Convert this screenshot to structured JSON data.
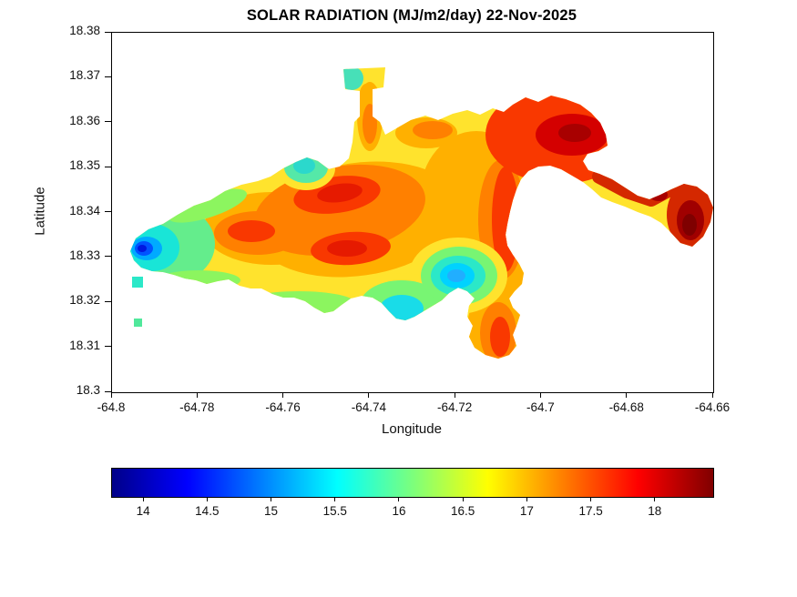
{
  "figure": {
    "title": "SOLAR RADIATION (MJ/m2/day) 22-Nov-2025",
    "background_color": "#FFFFFF",
    "no_data_color": "#FFFFFF"
  },
  "chart_data": {
    "type": "heatmap",
    "subtype": "filled-contour-geographic-map",
    "title": "SOLAR RADIATION (MJ/m2/day) 22-Nov-2025",
    "variable": "solar radiation",
    "units": "MJ/m2/day",
    "date": "22-Nov-2025",
    "xlabel": "Longitude",
    "ylabel": "Latitude",
    "xlim": [
      -64.8,
      -64.66
    ],
    "ylim": [
      18.3,
      18.38
    ],
    "x_ticks": [
      "-64.8",
      "-64.78",
      "-64.76",
      "-64.74",
      "-64.72",
      "-64.7",
      "-64.68",
      "-64.66"
    ],
    "y_ticks": [
      "18.38",
      "18.37",
      "18.36",
      "18.35",
      "18.34",
      "18.33",
      "18.32",
      "18.31",
      "18.3"
    ],
    "grid": false,
    "legend": "horizontal colorbar below plot",
    "colormap": "jet",
    "region_note": "Island landmass between lon -64.796 and -64.66, lat 18.307 and 18.372; values plotted only over land, white background elsewhere",
    "typical_land_value": 16.8,
    "colorbar": {
      "orientation": "horizontal",
      "range": [
        13.75,
        18.45
      ],
      "ticks": [
        "14",
        "14.5",
        "15",
        "15.5",
        "16",
        "16.5",
        "17",
        "17.5",
        "18"
      ],
      "tick_values": [
        14,
        14.5,
        15,
        15.5,
        16,
        16.5,
        17,
        17.5,
        18
      ],
      "stops": [
        {
          "pos": 0.0,
          "color": "#000089"
        },
        {
          "pos": 0.125,
          "color": "#0000FF"
        },
        {
          "pos": 0.25,
          "color": "#0080FF"
        },
        {
          "pos": 0.375,
          "color": "#00FFFF"
        },
        {
          "pos": 0.5,
          "color": "#7CFF7C"
        },
        {
          "pos": 0.625,
          "color": "#FFFF00"
        },
        {
          "pos": 0.75,
          "color": "#FF7F00"
        },
        {
          "pos": 0.875,
          "color": "#FF0000"
        },
        {
          "pos": 1.0,
          "color": "#800000"
        }
      ]
    },
    "features": [
      {
        "lon": -64.791,
        "lat": 18.332,
        "value": 14.2,
        "description": "local minimum, dark blue pocket at western tip"
      },
      {
        "lon": -64.72,
        "lat": 18.326,
        "value": 15.2,
        "description": "local minimum, cyan pocket in south-central body"
      },
      {
        "lon": -64.733,
        "lat": 18.318,
        "value": 15.5,
        "description": "cyan/green notch on south coast"
      },
      {
        "lon": -64.755,
        "lat": 18.352,
        "value": 15.8,
        "description": "teal patch on north-central coast"
      },
      {
        "lon": -64.748,
        "lat": 18.344,
        "value": 17.6,
        "description": "local maximum, red core in central uplands"
      },
      {
        "lon": -64.746,
        "lat": 18.332,
        "value": 17.6,
        "description": "local maximum, red core south-central"
      },
      {
        "lon": -64.768,
        "lat": 18.336,
        "value": 17.3,
        "description": "orange-red patch west-central"
      },
      {
        "lon": -64.712,
        "lat": 18.34,
        "value": 17.5,
        "description": "red band along eastern edge of main body"
      },
      {
        "lon": -64.695,
        "lat": 18.357,
        "value": 18.1,
        "description": "dark red high, northeast lobe"
      },
      {
        "lon": -64.711,
        "lat": 18.313,
        "value": 17.6,
        "description": "red southeast spur"
      },
      {
        "lon": -64.665,
        "lat": 18.339,
        "value": 18.4,
        "description": "maximum, dark red far-eastern peninsula"
      },
      {
        "lon": -64.744,
        "lat": 18.37,
        "value": 16.8,
        "description": "narrow northern promontory, yellow-orange with teal tip"
      }
    ]
  }
}
